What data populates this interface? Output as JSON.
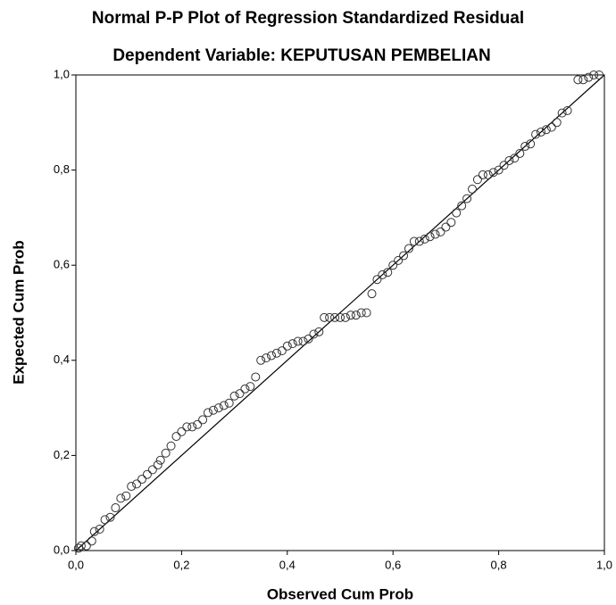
{
  "chart_data": {
    "type": "scatter",
    "title": "Normal P-P Plot of Regression Standardized Residual",
    "subtitle": "Dependent Variable: KEPUTUSAN PEMBELIAN",
    "x_label": "Observed Cum Prob",
    "y_label": "Expected Cum Prob",
    "xlim": [
      0,
      1
    ],
    "ylim": [
      0,
      1
    ],
    "xticks": [
      {
        "value": 0,
        "label": "0,0"
      },
      {
        "value": 0.2,
        "label": "0,2"
      },
      {
        "value": 0.4,
        "label": "0,4"
      },
      {
        "value": 0.6,
        "label": "0,6"
      },
      {
        "value": 0.8,
        "label": "0,8"
      },
      {
        "value": 1,
        "label": "1,0"
      }
    ],
    "yticks": [
      {
        "value": 0,
        "label": "0,0"
      },
      {
        "value": 0.2,
        "label": "0,2"
      },
      {
        "value": 0.4,
        "label": "0,4"
      },
      {
        "value": 0.6,
        "label": "0,6"
      },
      {
        "value": 0.8,
        "label": "0,8"
      },
      {
        "value": 1,
        "label": "1,0"
      }
    ],
    "color": "#333333",
    "x": [
      0.005,
      0.01,
      0.02,
      0.03,
      0.035,
      0.045,
      0.055,
      0.065,
      0.075,
      0.085,
      0.095,
      0.105,
      0.115,
      0.125,
      0.135,
      0.145,
      0.155,
      0.16,
      0.17,
      0.18,
      0.19,
      0.2,
      0.21,
      0.22,
      0.23,
      0.24,
      0.25,
      0.26,
      0.27,
      0.28,
      0.29,
      0.3,
      0.31,
      0.32,
      0.33,
      0.34,
      0.35,
      0.36,
      0.37,
      0.38,
      0.39,
      0.4,
      0.41,
      0.42,
      0.43,
      0.44,
      0.45,
      0.46,
      0.47,
      0.48,
      0.49,
      0.5,
      0.51,
      0.52,
      0.53,
      0.54,
      0.55,
      0.56,
      0.57,
      0.58,
      0.59,
      0.6,
      0.61,
      0.62,
      0.63,
      0.64,
      0.65,
      0.66,
      0.67,
      0.68,
      0.69,
      0.7,
      0.71,
      0.72,
      0.73,
      0.74,
      0.75,
      0.76,
      0.77,
      0.78,
      0.79,
      0.8,
      0.81,
      0.82,
      0.83,
      0.84,
      0.85,
      0.86,
      0.87,
      0.88,
      0.89,
      0.9,
      0.91,
      0.92,
      0.93,
      0.95,
      0.96,
      0.97,
      0.98,
      0.99
    ],
    "values": [
      0.005,
      0.01,
      0.01,
      0.02,
      0.04,
      0.045,
      0.065,
      0.07,
      0.09,
      0.11,
      0.115,
      0.135,
      0.14,
      0.15,
      0.16,
      0.17,
      0.18,
      0.19,
      0.205,
      0.22,
      0.24,
      0.25,
      0.26,
      0.26,
      0.265,
      0.275,
      0.29,
      0.295,
      0.3,
      0.305,
      0.31,
      0.325,
      0.33,
      0.34,
      0.345,
      0.365,
      0.4,
      0.405,
      0.41,
      0.415,
      0.42,
      0.43,
      0.435,
      0.44,
      0.44,
      0.445,
      0.455,
      0.46,
      0.49,
      0.49,
      0.49,
      0.49,
      0.49,
      0.495,
      0.495,
      0.5,
      0.5,
      0.54,
      0.57,
      0.58,
      0.585,
      0.6,
      0.61,
      0.62,
      0.635,
      0.65,
      0.65,
      0.655,
      0.66,
      0.665,
      0.67,
      0.68,
      0.69,
      0.71,
      0.725,
      0.74,
      0.76,
      0.78,
      0.79,
      0.79,
      0.795,
      0.8,
      0.81,
      0.82,
      0.825,
      0.835,
      0.85,
      0.855,
      0.875,
      0.88,
      0.885,
      0.89,
      0.9,
      0.92,
      0.925,
      0.99,
      0.99,
      0.995,
      1.0,
      1.0
    ]
  }
}
